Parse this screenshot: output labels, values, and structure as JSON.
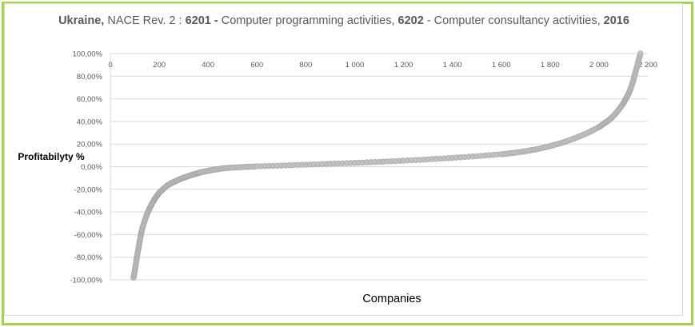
{
  "title": {
    "part1_bold": "Ukraine,",
    "part2": " NACE Rev. 2 : ",
    "part3_bold": "6201 -",
    "part4": " Computer programming activities, ",
    "part5_bold": "6202",
    "part6": " - Computer consultancy activities, ",
    "part7_bold": "2016"
  },
  "ylabel": "Profitabilyty %",
  "xlabel": "Companies",
  "colors": {
    "frame": "#a6d14a",
    "marker": "#c0c0c0",
    "marker_edge": "#a6a6a6",
    "grid": "#d9d9d9"
  },
  "chart_data": {
    "type": "scatter",
    "title": "Ukraine, NACE Rev. 2 : 6201 - Computer programming activities, 6202 - Computer consultancy activities, 2016",
    "xlabel": "Companies",
    "ylabel": "Profitabilyty %",
    "xlim": [
      0,
      2200
    ],
    "ylim": [
      -100,
      100
    ],
    "x_ticks": [
      0,
      200,
      400,
      600,
      800,
      1000,
      1200,
      1400,
      1600,
      1800,
      2000,
      2200
    ],
    "x_tick_labels": [
      "0",
      "200",
      "400",
      "600",
      "800",
      "1 000",
      "1 200",
      "1 400",
      "1 600",
      "1 800",
      "2 000",
      "2 200"
    ],
    "y_ticks": [
      -100,
      -80,
      -60,
      -40,
      -20,
      0,
      20,
      40,
      60,
      80,
      100
    ],
    "y_tick_labels": [
      "-100,00%",
      "-80,00%",
      "-60,00%",
      "-40,00%",
      "-20,00%",
      "0,00%",
      "20,00%",
      "40,00%",
      "60,00%",
      "80,00%",
      "100,00%"
    ],
    "grid": "horizontal",
    "series": [
      {
        "marker": "circle",
        "x": [
          95,
          100,
          105,
          110,
          115,
          120,
          125,
          130,
          140,
          150,
          160,
          170,
          180,
          190,
          200,
          215,
          230,
          250,
          270,
          290,
          310,
          330,
          350,
          370,
          400,
          430,
          460,
          500,
          550,
          600,
          700,
          800,
          900,
          1000,
          1100,
          1200,
          1300,
          1400,
          1500,
          1600,
          1650,
          1700,
          1750,
          1800,
          1850,
          1900,
          1950,
          2000,
          2020,
          2040,
          2060,
          2080,
          2100,
          2110,
          2120,
          2130,
          2140,
          2150,
          2160,
          2170
        ],
        "y": [
          -98,
          -92,
          -85,
          -78,
          -72,
          -66,
          -60,
          -55,
          -48,
          -42,
          -37,
          -33,
          -29,
          -26,
          -23,
          -20,
          -17,
          -14.5,
          -12.5,
          -10.5,
          -9,
          -7.5,
          -6.2,
          -5,
          -3.5,
          -2.5,
          -1.5,
          -0.8,
          -0.2,
          0.3,
          1,
          1.8,
          2.6,
          3.4,
          4.3,
          5.3,
          6.5,
          7.8,
          9.3,
          11,
          12.2,
          13.7,
          15.7,
          18.2,
          21.2,
          25,
          29.5,
          35,
          38,
          41,
          45,
          50,
          56,
          60,
          64,
          69,
          76,
          84,
          92,
          100
        ]
      }
    ]
  }
}
